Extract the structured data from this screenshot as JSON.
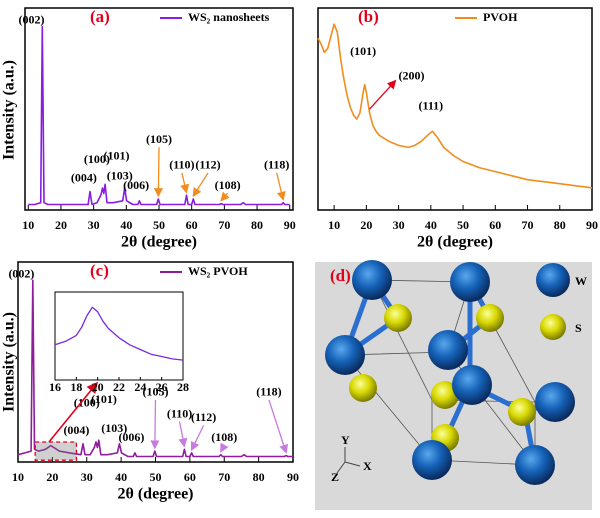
{
  "chart_data": [
    {
      "type": "line",
      "title": "(a)",
      "xlabel": "2θ (degree)",
      "ylabel": "Intensity (a.u.)",
      "xlim": [
        9,
        91
      ],
      "xticks": [
        10,
        20,
        30,
        40,
        50,
        60,
        70,
        80,
        90
      ],
      "ylim": [
        0,
        110
      ],
      "x": [
        10,
        12,
        13.8,
        14.3,
        14.8,
        16,
        20,
        25,
        28.3,
        28.9,
        29.5,
        31,
        32.2,
        32.7,
        33.1,
        33.5,
        34.1,
        36,
        38.9,
        39.5,
        40.1,
        42,
        43.5,
        44,
        44.5,
        47,
        49.3,
        49.8,
        50.3,
        54,
        57.9,
        58.4,
        58.9,
        60,
        60.5,
        61,
        65,
        68.5,
        69,
        69.5,
        72,
        75,
        75.8,
        76.5,
        80,
        85,
        87.5,
        88,
        88.5,
        90
      ],
      "series": [
        {
          "name": "WS₂ nanosheets",
          "color": "#8a1be0",
          "values": [
            3,
            3,
            4,
            100,
            4,
            3,
            3,
            3,
            3,
            10,
            3,
            4,
            8,
            12,
            9,
            14,
            4,
            4,
            5,
            12,
            5,
            3,
            3,
            5,
            3,
            3,
            3,
            6,
            3,
            3,
            3,
            8,
            3,
            3,
            6,
            3,
            3,
            3,
            3.5,
            3,
            3,
            3,
            4,
            3,
            3,
            3,
            3,
            4,
            3,
            3
          ]
        }
      ],
      "annotations": [
        {
          "text": "(002)",
          "x": 14.3
        },
        {
          "text": "(004)",
          "x": 28.9
        },
        {
          "text": "(100)",
          "x": 32.7
        },
        {
          "text": "(101)",
          "x": 33.5
        },
        {
          "text": "(103)",
          "x": 39.5
        },
        {
          "text": "(006)",
          "x": 44
        },
        {
          "text": "(105)",
          "x": 49.8
        },
        {
          "text": "(110)",
          "x": 58.4
        },
        {
          "text": "(112)",
          "x": 60.5
        },
        {
          "text": "(108)",
          "x": 69
        },
        {
          "text": "(118)",
          "x": 88
        }
      ]
    },
    {
      "type": "line",
      "title": "(b)",
      "xlabel": "2θ (degree)",
      "xlim": [
        5,
        90
      ],
      "xticks": [
        10,
        20,
        30,
        40,
        50,
        60,
        70,
        80,
        90
      ],
      "ylim": [
        0,
        100
      ],
      "x": [
        5,
        6,
        7,
        8,
        9,
        10,
        11,
        12,
        13,
        14,
        15,
        16,
        17,
        18,
        19,
        19.5,
        20,
        21,
        22,
        23,
        24,
        25,
        27,
        30,
        33,
        35,
        37,
        39,
        40.5,
        42,
        44,
        47,
        50,
        55,
        60,
        65,
        70,
        75,
        80,
        85,
        90
      ],
      "series": [
        {
          "name": "PVOH",
          "color": "#f28c1c",
          "values": [
            85,
            82,
            78,
            80,
            86,
            92,
            88,
            75,
            65,
            57,
            51,
            47,
            45,
            48,
            58,
            62,
            58,
            48,
            42,
            39,
            37,
            36,
            34,
            32,
            31,
            32,
            34,
            37,
            39,
            36,
            31,
            27,
            24,
            21,
            19,
            17,
            15,
            14,
            13,
            12,
            11
          ]
        }
      ],
      "annotations": [
        {
          "text": "(101)",
          "x": 19.5
        },
        {
          "text": "(200)",
          "x": 21
        },
        {
          "text": "(111)",
          "x": 40.5
        }
      ]
    },
    {
      "type": "line",
      "title": "(c)",
      "xlabel": "2θ (degree)",
      "ylabel": "Intensity (a.u.)",
      "xlim": [
        10,
        90
      ],
      "xticks": [
        10,
        20,
        30,
        40,
        50,
        60,
        70,
        80,
        90
      ],
      "ylim": [
        0,
        110
      ],
      "x": [
        10,
        12,
        13.8,
        14.3,
        14.8,
        16,
        18,
        19.5,
        22,
        25,
        28.3,
        28.9,
        29.5,
        31,
        32.2,
        32.7,
        33.1,
        33.5,
        34.1,
        36,
        38.9,
        39.5,
        40.1,
        42,
        43.5,
        44,
        44.5,
        47,
        49.3,
        49.8,
        50.3,
        54,
        57.9,
        58.4,
        58.9,
        60,
        60.5,
        61,
        65,
        68.5,
        69,
        69.5,
        72,
        75,
        75.8,
        76.5,
        80,
        85,
        87.5,
        88,
        88.5,
        90
      ],
      "series": [
        {
          "name": "WS₂ PVOH",
          "color": "#8e1c9c",
          "values": [
            4,
            5,
            6,
            100,
            7,
            6,
            7,
            9,
            6,
            5,
            4,
            10,
            4,
            4,
            8,
            11,
            8,
            12,
            4,
            4,
            5,
            10,
            5,
            3,
            3,
            5,
            3,
            3,
            3,
            6,
            3,
            3,
            3,
            7,
            3,
            3,
            5,
            3,
            3,
            3,
            4,
            3,
            3,
            3,
            4,
            3,
            3,
            3,
            3,
            3.5,
            3,
            3
          ]
        }
      ],
      "annotations": [
        {
          "text": "(002)",
          "x": 14.3
        },
        {
          "text": "(004)",
          "x": 28.9
        },
        {
          "text": "(100)",
          "x": 32.7
        },
        {
          "text": "(101)",
          "x": 33.5
        },
        {
          "text": "(103)",
          "x": 39.5
        },
        {
          "text": "(006)",
          "x": 44
        },
        {
          "text": "(105)",
          "x": 49.8
        },
        {
          "text": "(110)",
          "x": 58.4
        },
        {
          "text": "(112)",
          "x": 60.5
        },
        {
          "text": "(108)",
          "x": 69
        },
        {
          "text": "(118)",
          "x": 88
        }
      ]
    },
    {
      "type": "line",
      "xlim": [
        16,
        28
      ],
      "xticks": [
        16,
        18,
        20,
        22,
        24,
        26,
        28
      ],
      "ylim": [
        0,
        75
      ],
      "x": [
        16,
        17,
        18,
        18.5,
        19,
        19.5,
        20,
        20.5,
        21,
        22,
        23,
        24,
        25,
        26,
        27,
        28
      ],
      "series": [
        {
          "color": "#7a2ae0",
          "values": [
            30,
            33,
            38,
            45,
            55,
            62,
            58,
            50,
            44,
            36,
            30,
            26,
            22,
            20,
            18,
            17
          ]
        }
      ]
    }
  ],
  "diagram": {
    "label": "(d)",
    "legend": [
      "W",
      "S"
    ],
    "axes": [
      "Y",
      "X",
      "Z"
    ]
  }
}
